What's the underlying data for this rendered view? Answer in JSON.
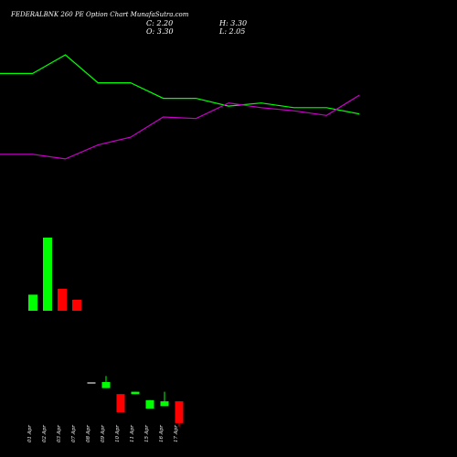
{
  "title": "FEDERALBNK 260 PE Option Chart MunafaSutra.com",
  "ohlc": {
    "c": "C: 2.20",
    "h": "H: 3.30",
    "o": "O: 3.30",
    "l": "L: 2.05"
  },
  "chart_data": {
    "type": "candlestick",
    "colors": {
      "up": "#00ff00",
      "down": "#ff0000",
      "line_green": "#00ff00",
      "line_magenta": "#cc00cc",
      "flat": "#888888"
    },
    "x_labels": [
      "01 Apr",
      "02 Apr",
      "03 Apr",
      "07 Apr",
      "08 Apr",
      "09 Apr",
      "10 Apr",
      "11 Apr",
      "15 Apr",
      "16 Apr",
      "17 Apr"
    ],
    "line_series": [
      {
        "color": "green",
        "values": [
          0.88,
          0.88,
          1.0,
          0.82,
          0.82,
          0.72,
          0.72,
          0.67,
          0.69,
          0.66,
          0.66,
          0.62
        ]
      },
      {
        "color": "magenta",
        "values": [
          0.36,
          0.36,
          0.33,
          0.42,
          0.47,
          0.6,
          0.59,
          0.69,
          0.66,
          0.64,
          0.61,
          0.74
        ]
      }
    ],
    "volume": [
      {
        "value": 0.22,
        "dir": "up"
      },
      {
        "value": 1.0,
        "dir": "up"
      },
      {
        "value": 0.3,
        "dir": "down"
      },
      {
        "value": 0.15,
        "dir": "down"
      }
    ],
    "price_ylim": [
      2.0,
      4.0
    ],
    "candles": [
      {
        "o": 3.0,
        "h": 3.0,
        "l": 3.0,
        "c": 3.0,
        "dir": "flat"
      },
      {
        "o": 2.95,
        "h": 3.05,
        "l": 2.95,
        "c": 3.0,
        "dir": "up"
      },
      {
        "o": 2.9,
        "h": 2.9,
        "l": 2.75,
        "c": 2.75,
        "dir": "down"
      },
      {
        "o": 2.9,
        "h": 2.92,
        "l": 2.9,
        "c": 2.92,
        "dir": "up"
      },
      {
        "o": 2.78,
        "h": 2.85,
        "l": 2.78,
        "c": 2.85,
        "dir": "up"
      },
      {
        "o": 2.8,
        "h": 2.92,
        "l": 2.8,
        "c": 2.84,
        "dir": "up"
      },
      {
        "o": 2.84,
        "h": 2.84,
        "l": 2.63,
        "c": 2.66,
        "dir": "down"
      }
    ]
  }
}
